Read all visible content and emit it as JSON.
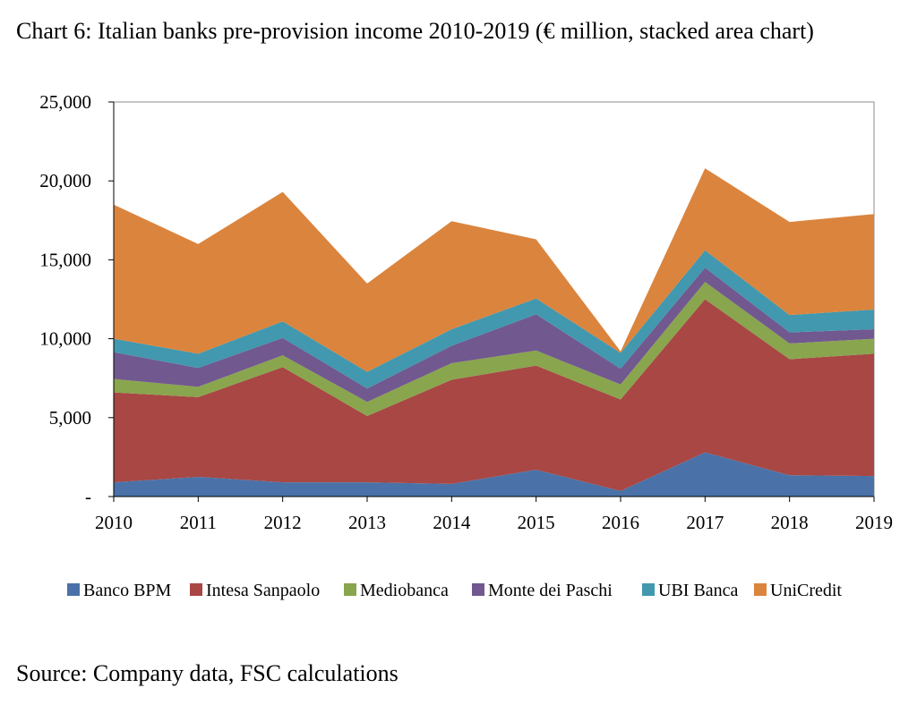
{
  "title": "Chart 6: Italian banks pre-provision income 2010-2019 (€ million, stacked area chart)",
  "source": "Source: Company data, FSC calculations",
  "chart_data": {
    "type": "area",
    "stacked": true,
    "categories": [
      "2010",
      "2011",
      "2012",
      "2013",
      "2014",
      "2015",
      "2016",
      "2017",
      "2018",
      "2019"
    ],
    "y_tick_labels": [
      "-",
      "5,000",
      "10,000",
      "15,000",
      "20,000",
      "25,000"
    ],
    "ylim": [
      0,
      25000
    ],
    "y_ticks": [
      0,
      5000,
      10000,
      15000,
      20000,
      25000
    ],
    "legend_position": "bottom",
    "series": [
      {
        "name": "Banco BPM",
        "color": "#4a72a8",
        "values": [
          900,
          1250,
          900,
          900,
          800,
          1700,
          350,
          2800,
          1350,
          1300
        ]
      },
      {
        "name": "Intesa Sanpaolo",
        "color": "#a84744",
        "values": [
          5700,
          5050,
          7300,
          4200,
          6600,
          6600,
          5800,
          9700,
          7350,
          7750
        ]
      },
      {
        "name": "Mediobanca",
        "color": "#89a54e",
        "values": [
          850,
          650,
          750,
          900,
          1050,
          950,
          950,
          1100,
          1000,
          950
        ]
      },
      {
        "name": "Monte dei Paschi",
        "color": "#71588f",
        "values": [
          1700,
          1200,
          1100,
          850,
          1100,
          2300,
          1000,
          900,
          700,
          600
        ]
      },
      {
        "name": "UBI Banca",
        "color": "#4198af",
        "values": [
          850,
          900,
          1050,
          1050,
          1050,
          1000,
          1000,
          1100,
          1100,
          1250
        ]
      },
      {
        "name": "UniCredit",
        "color": "#db843d",
        "values": [
          8500,
          6950,
          8200,
          5600,
          6850,
          3750,
          100,
          5200,
          5900,
          6050
        ]
      }
    ]
  }
}
